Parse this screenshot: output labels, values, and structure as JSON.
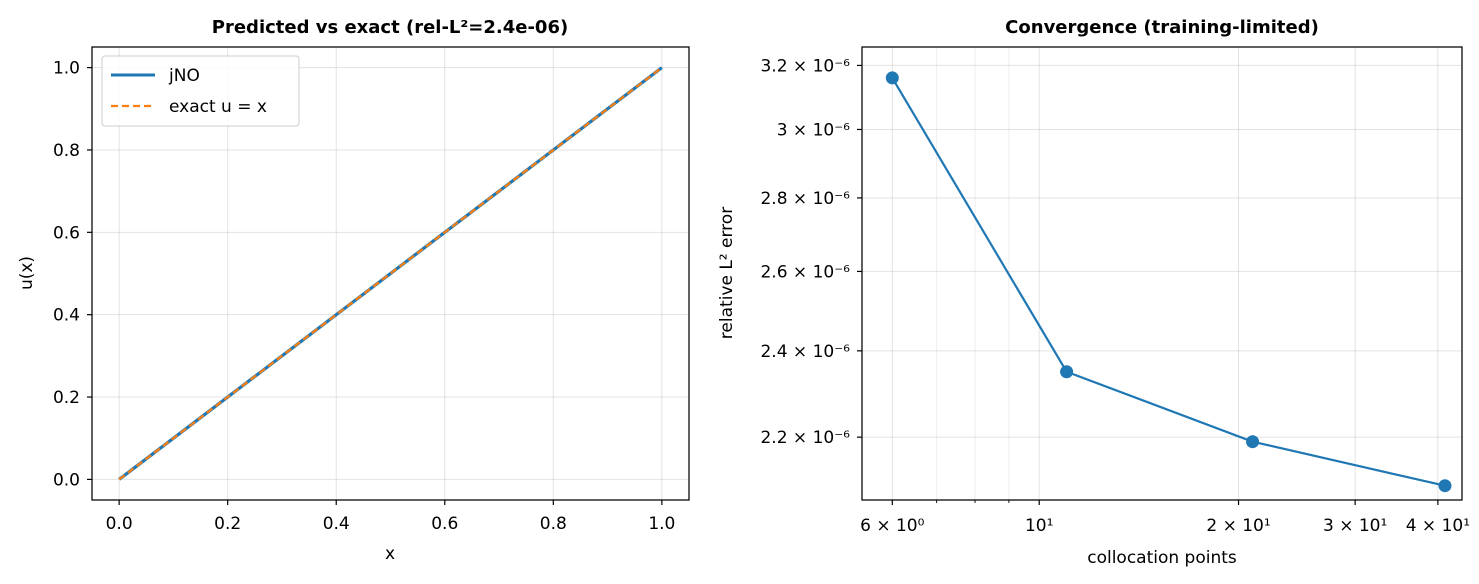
{
  "chart_data": [
    {
      "type": "line",
      "title": "Predicted vs exact  (rel-L²=2.4e-06)",
      "xlabel": "x",
      "ylabel": "u(x)",
      "xlim": [
        -0.05,
        1.05
      ],
      "ylim": [
        -0.05,
        1.05
      ],
      "xticks": [
        0.0,
        0.2,
        0.4,
        0.6,
        0.8,
        1.0
      ],
      "xtick_labels": [
        "0.0",
        "0.2",
        "0.4",
        "0.6",
        "0.8",
        "1.0"
      ],
      "yticks": [
        0.0,
        0.2,
        0.4,
        0.6,
        0.8,
        1.0
      ],
      "ytick_labels": [
        "0.0",
        "0.2",
        "0.4",
        "0.6",
        "0.8",
        "1.0"
      ],
      "grid": true,
      "legend": "top-left",
      "series": [
        {
          "name": "jNO",
          "style": "solid",
          "color": "#1f77b4",
          "x": [
            0.0,
            1.0
          ],
          "y": [
            0.0,
            1.0
          ]
        },
        {
          "name": "exact  u = x",
          "style": "dashed",
          "color": "#ff7f0e",
          "x": [
            0.0,
            1.0
          ],
          "y": [
            0.0,
            1.0
          ]
        }
      ]
    },
    {
      "type": "line",
      "title": "Convergence (training-limited)",
      "xlabel": "collocation points",
      "ylabel": "relative L² error",
      "xscale": "log",
      "yscale": "log",
      "xlim": [
        5.4,
        43.5
      ],
      "ylim": [
        2.065e-06,
        3.26e-06
      ],
      "xticks": [
        6,
        10,
        20,
        30,
        40
      ],
      "xtick_labels": [
        "6 × 10⁰",
        "10¹",
        "2 × 10¹",
        "3 × 10¹",
        "4 × 10¹"
      ],
      "yticks": [
        2.2e-06,
        2.4e-06,
        2.6e-06,
        2.8e-06,
        3e-06,
        3.2e-06
      ],
      "ytick_labels": [
        "2.2 × 10⁻⁶",
        "2.4 × 10⁻⁶",
        "2.6 × 10⁻⁶",
        "2.8 × 10⁻⁶",
        "3 × 10⁻⁶",
        "3.2 × 10⁻⁶"
      ],
      "grid": true,
      "series": [
        {
          "color": "#1f77b4",
          "marker": "circle",
          "x": [
            6,
            11,
            21,
            41
          ],
          "y": [
            3.16e-06,
            2.35e-06,
            2.19e-06,
            2.095e-06
          ]
        }
      ]
    }
  ]
}
